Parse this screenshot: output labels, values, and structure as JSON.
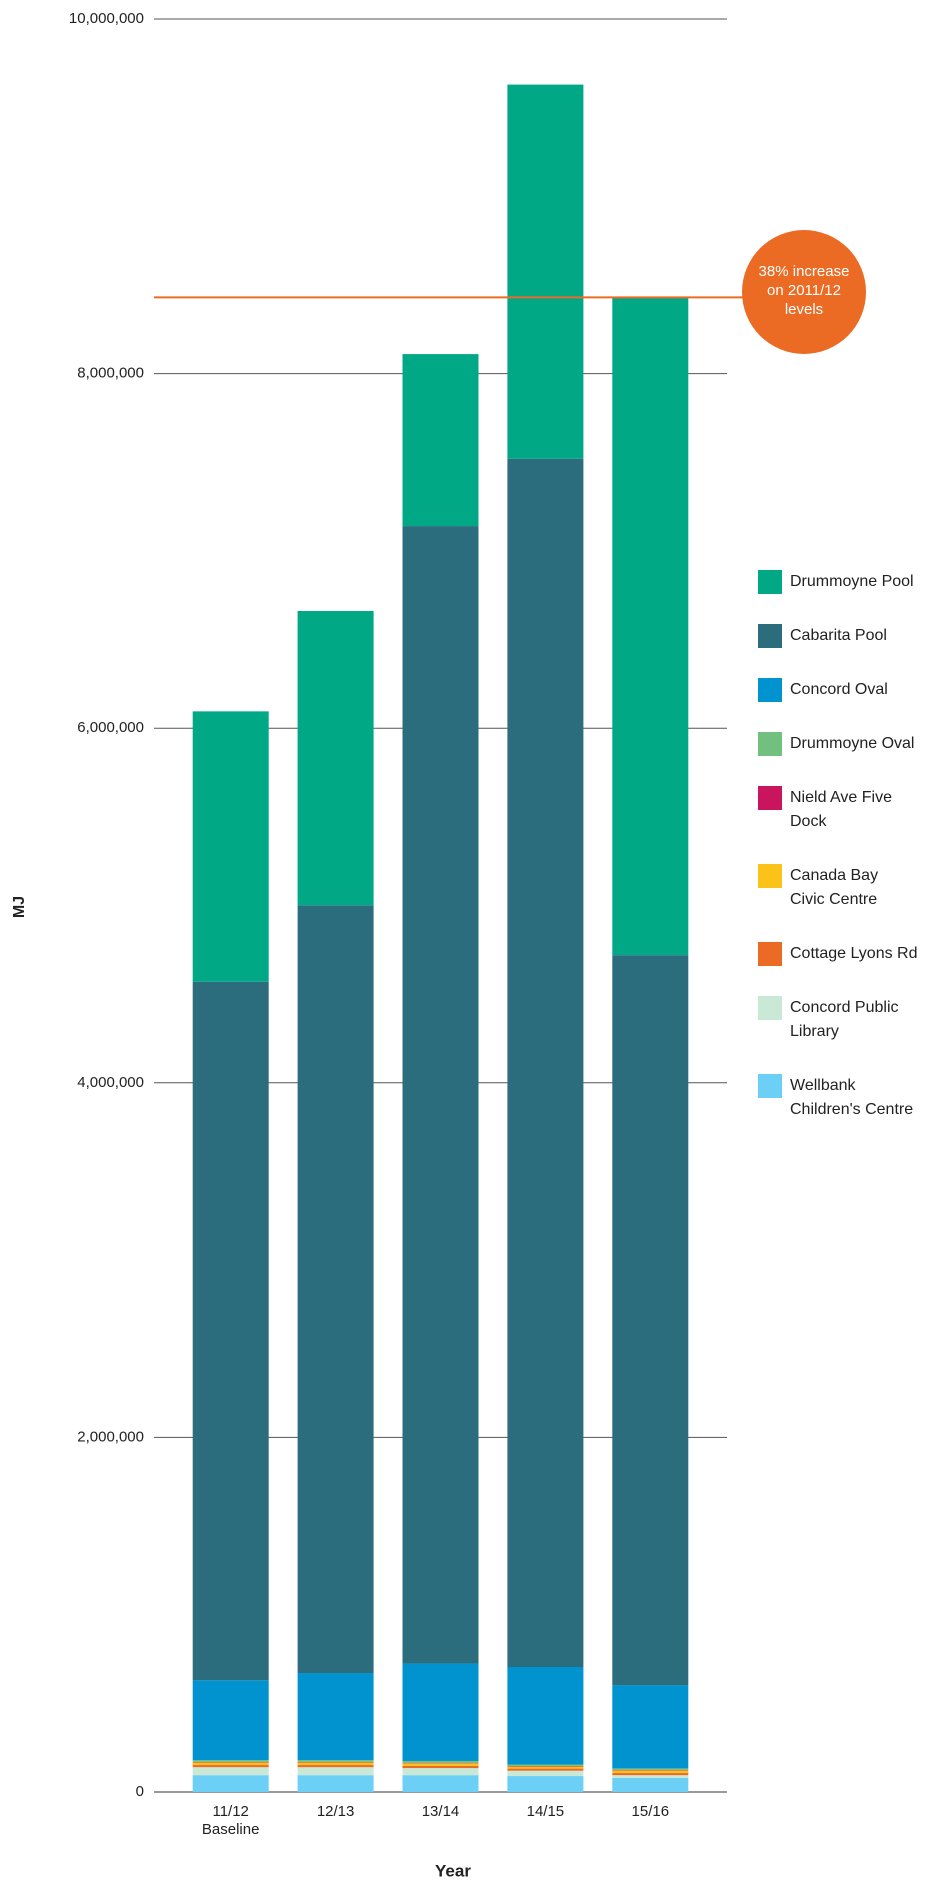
{
  "chart_data": {
    "type": "stacked-bar",
    "categories": [
      "11/12 Baseline",
      "12/13",
      "13/14",
      "14/15",
      "15/16"
    ],
    "x_label": "Year",
    "y_label": "MJ",
    "series": [
      {
        "name": "Wellbank Children's Centre",
        "color": "#6ccff5",
        "values": [
          95000,
          95000,
          95000,
          90000,
          80000
        ]
      },
      {
        "name": "Concord Public Library",
        "color": "#c9e8d6",
        "values": [
          45000,
          45000,
          40000,
          30000,
          15000
        ]
      },
      {
        "name": "Cottage Lyons Rd",
        "color": "#ec6b24",
        "values": [
          12000,
          12000,
          12000,
          12000,
          12000
        ]
      },
      {
        "name": "Canada Bay Civic Centre",
        "color": "#fbc31a",
        "values": [
          15000,
          15000,
          15000,
          12000,
          15000
        ]
      },
      {
        "name": "Nield Ave Five Dock",
        "color": "#c8155e",
        "values": [
          3000,
          3000,
          3000,
          3000,
          3000
        ]
      },
      {
        "name": "Drummoyne Oval",
        "color": "#72c07f",
        "values": [
          10000,
          10000,
          10000,
          8000,
          8000
        ]
      },
      {
        "name": "Concord Oval",
        "color": "#0093d0",
        "values": [
          450000,
          491000,
          550000,
          550000,
          470000
        ]
      },
      {
        "name": "Cabarita Pool",
        "color": "#2b6d7d",
        "values": [
          3940000,
          4330000,
          6415000,
          6815000,
          4117000
        ]
      },
      {
        "name": "Drummoyne Pool",
        "color": "#00a886",
        "values": [
          1525000,
          1660000,
          970000,
          2110000,
          3710000
        ]
      }
    ],
    "ylim": [
      0,
      10000000
    ],
    "yticks": [
      0,
      {
        "value": 2000000,
        "label": "2,000,000"
      },
      {
        "value": 4000000,
        "label": "4,000,000"
      },
      {
        "value": 6000000,
        "label": "6,000,000"
      },
      {
        "value": 8000000,
        "label": "8,000,000"
      },
      {
        "value": 10000000,
        "label": "10,000,000"
      }
    ],
    "grid": true,
    "reference_line": {
      "value": 8430000,
      "color": "#ec6b24",
      "label": "38% increase on 2011/12 levels"
    }
  }
}
